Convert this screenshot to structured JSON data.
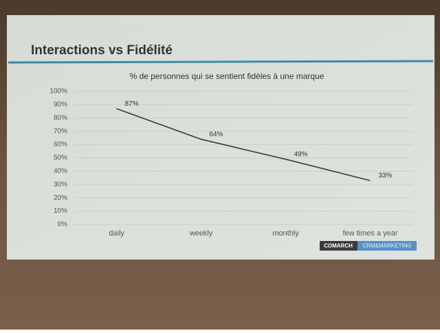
{
  "slide_title": "Interactions vs Fidélité",
  "logo": {
    "brand": "COMARCH",
    "product": "CRM&MARKETING"
  },
  "chart_data": {
    "type": "line",
    "title": "% de personnes qui se sentient fidèles à une marque",
    "categories": [
      "daily",
      "weekly",
      "monthly",
      "few times a year"
    ],
    "values": [
      87,
      64,
      49,
      33
    ],
    "value_labels": [
      "87%",
      "64%",
      "49%",
      "33%"
    ],
    "color": "#3a3a3a",
    "ylim": [
      0,
      100
    ],
    "yticks": [
      {
        "value": 0,
        "label": "0%"
      },
      {
        "value": 10,
        "label": "10%"
      },
      {
        "value": 20,
        "label": "20%"
      },
      {
        "value": 30,
        "label": "30%"
      },
      {
        "value": 40,
        "label": "40%"
      },
      {
        "value": 50,
        "label": "50%"
      },
      {
        "value": 60,
        "label": "60%"
      },
      {
        "value": 70,
        "label": "70%"
      },
      {
        "value": 80,
        "label": "80%"
      },
      {
        "value": 90,
        "label": "90%"
      },
      {
        "value": 100,
        "label": "100%"
      }
    ],
    "grid": true
  }
}
